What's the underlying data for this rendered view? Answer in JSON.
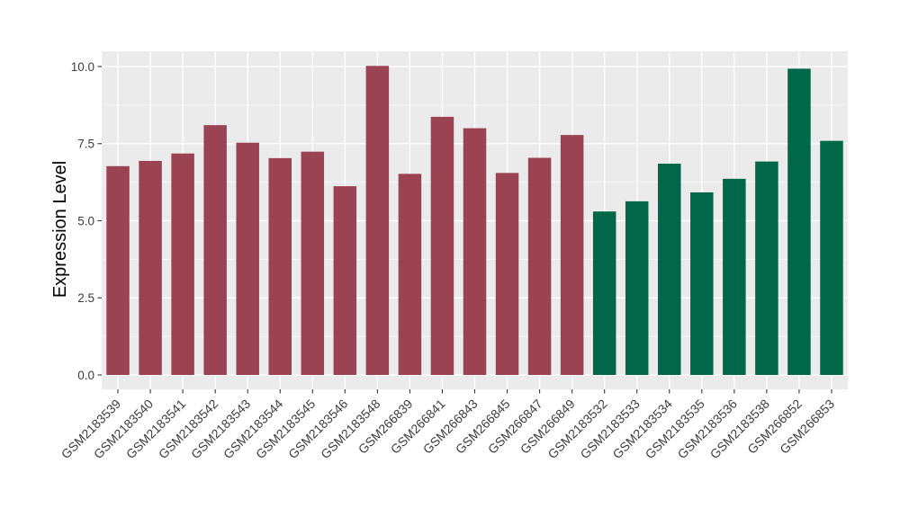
{
  "chart_data": {
    "type": "bar",
    "title": "",
    "xlabel": "",
    "ylabel": "Expression Level",
    "ylim": [
      0,
      10.5
    ],
    "yticks": [
      0.0,
      2.5,
      5.0,
      7.5,
      10.0
    ],
    "ytick_labels": [
      "0.0",
      "2.5",
      "5.0",
      "7.5",
      "10.0"
    ],
    "minor_gridlines": [
      1.25,
      3.75,
      6.25,
      8.75
    ],
    "grid": "major-and-minor-horizontal-plus-vertical-at-category-centers",
    "legend_position": "none",
    "categories": [
      "GSM2183539",
      "GSM2183540",
      "GSM2183541",
      "GSM2183542",
      "GSM2183543",
      "GSM2183544",
      "GSM2183545",
      "GSM2183546",
      "GSM2183548",
      "GSM266839",
      "GSM266841",
      "GSM266843",
      "GSM266845",
      "GSM266847",
      "GSM266849",
      "GSM2183532",
      "GSM2183533",
      "GSM2183534",
      "GSM2183535",
      "GSM2183536",
      "GSM2183538",
      "GSM266852",
      "GSM266853"
    ],
    "values": [
      6.77,
      6.94,
      7.18,
      8.1,
      7.53,
      7.03,
      7.24,
      6.12,
      10.02,
      6.52,
      8.37,
      8.0,
      6.55,
      7.04,
      7.78,
      5.3,
      5.63,
      6.85,
      5.92,
      6.36,
      6.92,
      9.93,
      7.59
    ],
    "groups": [
      "group1",
      "group1",
      "group1",
      "group1",
      "group1",
      "group1",
      "group1",
      "group1",
      "group1",
      "group1",
      "group1",
      "group1",
      "group1",
      "group1",
      "group1",
      "group2",
      "group2",
      "group2",
      "group2",
      "group2",
      "group2",
      "group2",
      "group2"
    ],
    "colors": {
      "group1": "#9B4353",
      "group2": "#006848",
      "panel_bg": "#EBEBEB",
      "gridline": "#FFFFFF",
      "tick_mark": "#333333",
      "tick_label": "#3D3D3D",
      "axis_title": "#000000",
      "figure_bg": "#FFFFFF"
    }
  }
}
